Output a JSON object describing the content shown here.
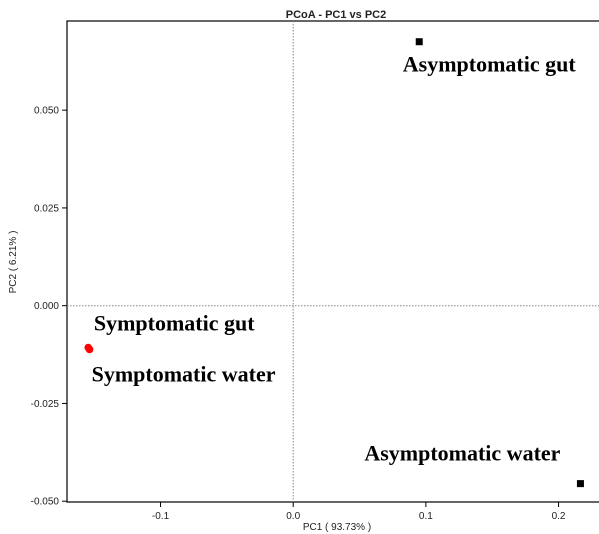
{
  "chart_data": {
    "type": "scatter",
    "title": "PCoA - PC1 vs PC2",
    "xlabel": "PC1 ( 93.73% )",
    "ylabel": "PC2 ( 6.21% )",
    "xlim": [
      -0.1705,
      0.2305
    ],
    "ylim": [
      -0.0502,
      0.0728
    ],
    "x_ticks": [
      -0.1,
      0,
      0.1,
      0.2
    ],
    "x_tick_labels": [
      "-0.1",
      "0.0",
      "0.1",
      "0.2"
    ],
    "y_ticks": [
      -0.05,
      -0.025,
      0,
      0.025,
      0.05
    ],
    "y_tick_labels": [
      "-0.050",
      "-0.025",
      "0.000",
      "0.025",
      "0.050"
    ],
    "reference_lines": {
      "x": 0,
      "y": 0
    },
    "grid": false,
    "points": [
      {
        "label": "Asymptomatic gut",
        "x": 0.095,
        "y": 0.0675,
        "color": "#000000",
        "marker": "square"
      },
      {
        "label": "Asymptomatic water",
        "x": 0.2165,
        "y": -0.0455,
        "color": "#000000",
        "marker": "square"
      },
      {
        "label": "Symptomatic gut",
        "x": -0.1545,
        "y": -0.0107,
        "color": "#ff0000",
        "marker": "circle"
      },
      {
        "label": "Symptomatic water",
        "x": -0.1535,
        "y": -0.0112,
        "color": "#ff0000",
        "marker": "circle"
      }
    ]
  }
}
